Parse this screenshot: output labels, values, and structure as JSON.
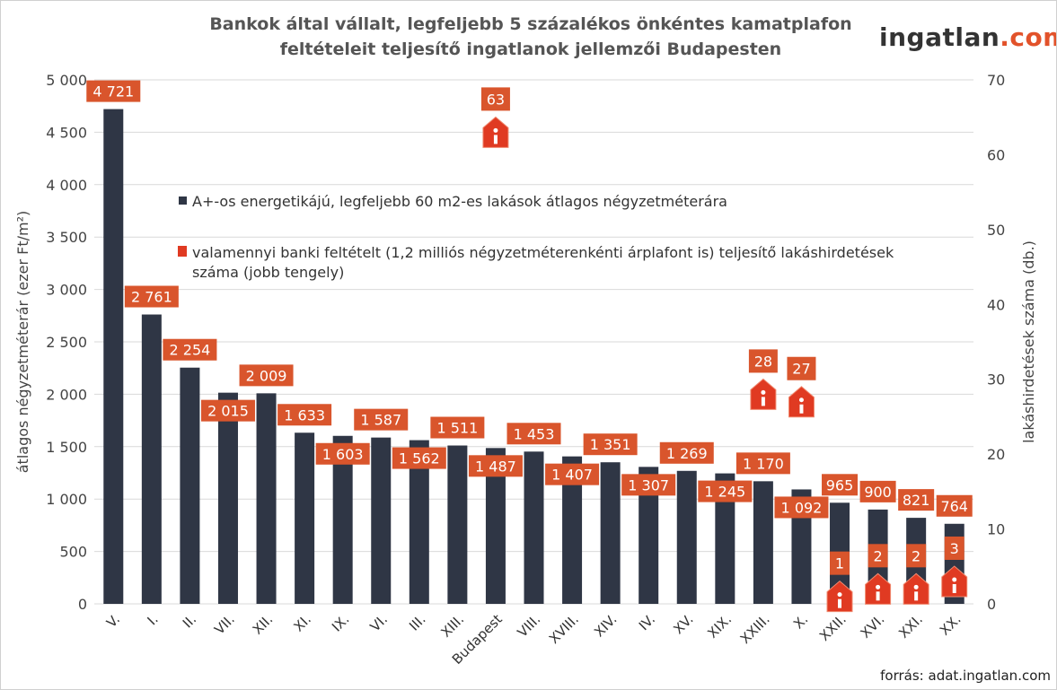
{
  "header": {
    "title": "Bankok által vállalt, legfeljebb 5 százalékos önkéntes kamatplafon feltételeit teljesítő ingatlanok jellemzői Budapesten",
    "logo_main": "ingatlan",
    "logo_suffix": ".com"
  },
  "footer": {
    "source": "forrás: adat.ingatlan.com"
  },
  "chart_data": {
    "type": "bar",
    "title": "Bankok által vállalt, legfeljebb 5 százalékos önkéntes kamatplafon feltételeit teljesítő ingatlanok jellemzői Budapesten",
    "categories": [
      "V.",
      "I.",
      "II.",
      "VII.",
      "XII.",
      "XI.",
      "IX.",
      "VI.",
      "III.",
      "XIII.",
      "Budapest",
      "VIII.",
      "XVIII.",
      "XIV.",
      "IV.",
      "XV.",
      "XIX.",
      "XXIII.",
      "X.",
      "XXII.",
      "XVI.",
      "XXI.",
      "XX."
    ],
    "ylabel": "átlagos négyzetméterár (ezer Ft/m²)",
    "y2label": "lakáshirdetések száma (db.)",
    "ylim": [
      0,
      5000
    ],
    "y2lim": [
      0,
      70
    ],
    "yticks": [
      "0",
      "500",
      "1 000",
      "1 500",
      "2 000",
      "2 500",
      "3 000",
      "3 500",
      "4 000",
      "4 500",
      "5 000"
    ],
    "y2ticks": [
      "0",
      "10",
      "20",
      "30",
      "40",
      "50",
      "60",
      "70"
    ],
    "grid": true,
    "legend_position": "center",
    "series": [
      {
        "name": "A+-os energetikájú, legfeljebb 60 m2-es lakások átlagos négyzetméterára",
        "type": "bar",
        "axis": "left",
        "color": "#2f3645",
        "values": [
          4721,
          2761,
          2254,
          2015,
          2009,
          1633,
          1603,
          1587,
          1562,
          1511,
          1487,
          1453,
          1407,
          1351,
          1307,
          1269,
          1245,
          1170,
          1092,
          965,
          900,
          821,
          764
        ],
        "labels": [
          "4 721",
          "2 761",
          "2 254",
          "2 015",
          "2 009",
          "1 633",
          "1 603",
          "1 587",
          "1 562",
          "1 511",
          "1 487",
          "1 453",
          "1 407",
          "1 351",
          "1 307",
          "1 269",
          "1 245",
          "1 170",
          "1 092",
          "965",
          "900",
          "821",
          "764"
        ]
      },
      {
        "name": "valamennyi banki feltételt (1,2 milliós négyzetméterenkénti árplafont is) teljesítő lakáshirdetések száma (jobb tengely)",
        "type": "marker",
        "axis": "right",
        "icon": "house-info-icon",
        "color": "#e03a22",
        "values": [
          null,
          null,
          null,
          null,
          null,
          null,
          null,
          null,
          null,
          null,
          63,
          null,
          null,
          null,
          null,
          null,
          null,
          28,
          27,
          1,
          2,
          2,
          3
        ]
      }
    ],
    "label_color": "#d9552c"
  }
}
